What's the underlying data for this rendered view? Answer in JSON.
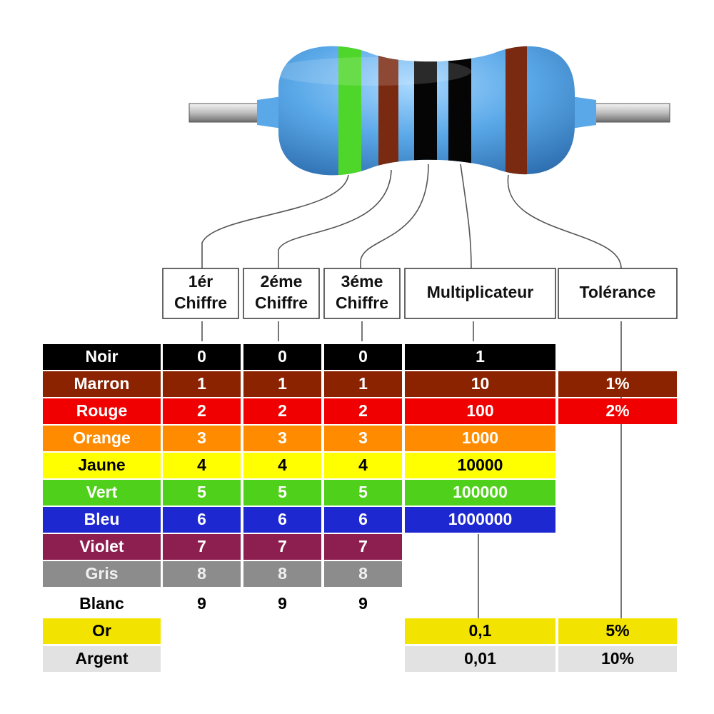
{
  "headers": [
    {
      "lines": [
        "1ér",
        "Chiffre"
      ]
    },
    {
      "lines": [
        "2éme",
        "Chiffre"
      ]
    },
    {
      "lines": [
        "3éme",
        "Chiffre"
      ]
    },
    {
      "lines": [
        "Multiplicateur"
      ]
    },
    {
      "lines": [
        "Tolérance"
      ]
    }
  ],
  "rows": [
    {
      "name": "Noir",
      "digits": [
        "0",
        "0",
        "0"
      ],
      "multiplier": "1"
    },
    {
      "name": "Marron",
      "digits": [
        "1",
        "1",
        "1"
      ],
      "multiplier": "10",
      "tolerance": "1%"
    },
    {
      "name": "Rouge",
      "digits": [
        "2",
        "2",
        "2"
      ],
      "multiplier": "100",
      "tolerance": "2%"
    },
    {
      "name": "Orange",
      "digits": [
        "3",
        "3",
        "3"
      ],
      "multiplier": "1000"
    },
    {
      "name": "Jaune",
      "digits": [
        "4",
        "4",
        "4"
      ],
      "multiplier": "10000"
    },
    {
      "name": "Vert",
      "digits": [
        "5",
        "5",
        "5"
      ],
      "multiplier": "100000"
    },
    {
      "name": "Bleu",
      "digits": [
        "6",
        "6",
        "6"
      ],
      "multiplier": "1000000"
    },
    {
      "name": "Violet",
      "digits": [
        "7",
        "7",
        "7"
      ]
    },
    {
      "name": "Gris",
      "digits": [
        "8",
        "8",
        "8"
      ]
    },
    {
      "name": "Blanc",
      "digits": [
        "9",
        "9",
        "9"
      ]
    },
    {
      "name": "Or",
      "multiplier": "0,1",
      "tolerance": "5%"
    },
    {
      "name": "Argent",
      "multiplier": "0,01",
      "tolerance": "10%"
    }
  ]
}
